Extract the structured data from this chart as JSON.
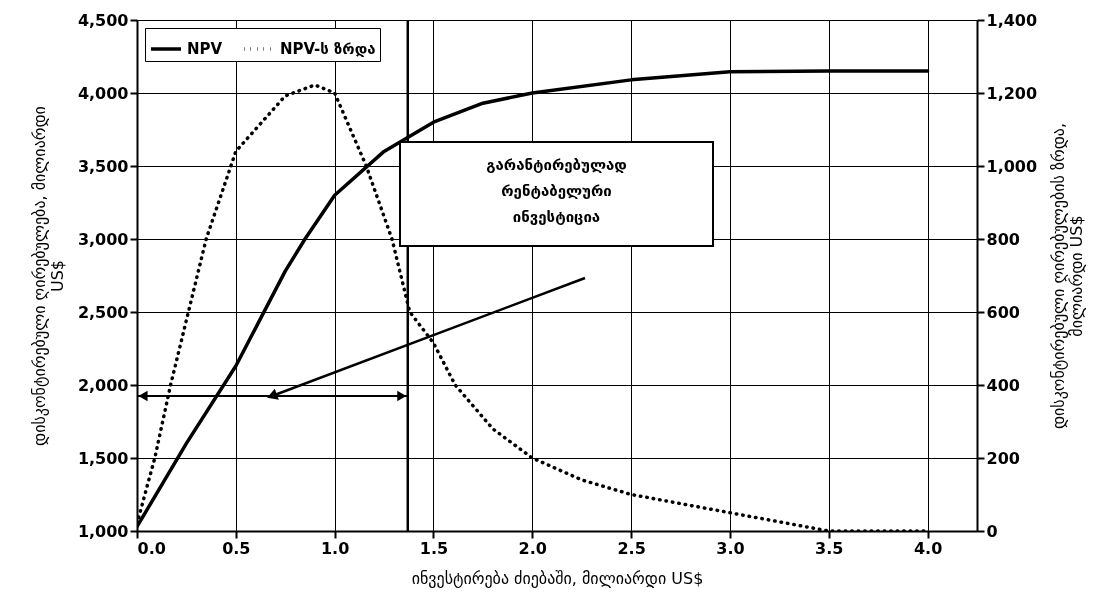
{
  "chart_data": {
    "type": "line",
    "xlabel": "ინვესტირება ძიებაში, მილიარდი US$",
    "ylabel": "დისკონტირებული ღირებულება, მილიარდი US$",
    "y2label": "დისკონტირებული ღირებულების ზრდა, მილიარდი US$",
    "xlim": [
      0,
      4.25
    ],
    "xticks": [
      {
        "value": 0,
        "label": "0.0"
      },
      0.5,
      {
        "value": 1,
        "label": "1.0"
      },
      1.5,
      {
        "value": 2,
        "label": "2.0"
      },
      2.5,
      {
        "value": 3,
        "label": "3.0"
      },
      3.5,
      {
        "value": 4,
        "label": "4.0"
      }
    ],
    "ylim": [
      1000,
      4500
    ],
    "yticks": [
      {
        "value": 1000,
        "label": "1,000"
      },
      {
        "value": 1500,
        "label": "1,500"
      },
      {
        "value": 2000,
        "label": "2,000"
      },
      {
        "value": 2500,
        "label": "2,500"
      },
      {
        "value": 3000,
        "label": "3,000"
      },
      {
        "value": 3500,
        "label": "3,500"
      },
      {
        "value": 4000,
        "label": "4,000"
      },
      {
        "value": 4500,
        "label": "4,500"
      }
    ],
    "y2lim": [
      0,
      1400
    ],
    "y2ticks": [
      0,
      200,
      400,
      600,
      800,
      {
        "value": 1000,
        "label": "1,000"
      },
      {
        "value": 1200,
        "label": "1,200"
      },
      {
        "value": 1400,
        "label": "1,400"
      }
    ],
    "grid": true,
    "legend": "top left",
    "series": [
      {
        "name": "NPV",
        "color": "#000000",
        "line_style": "solid",
        "x": [
          0,
          0.25,
          0.5,
          0.75,
          0.85,
          1,
          1.25,
          1.5,
          1.75,
          2,
          2.5,
          3,
          3.5,
          4
        ],
        "values": [
          1030,
          1600,
          2130,
          2780,
          3000,
          3300,
          3600,
          3800,
          3930,
          4000,
          4090,
          4145,
          4150,
          4150
        ]
      },
      {
        "name": "NPV-ს ზრდა",
        "color": "#000000",
        "line_style": "dotted",
        "axis": "y2",
        "x": [
          0,
          0.09,
          0.17,
          0.26,
          0.35,
          0.5,
          0.75,
          0.9,
          1,
          1.16,
          1.29,
          1.38,
          1.5,
          1.61,
          1.8,
          2,
          2.25,
          2.5,
          2.75,
          3,
          3.25,
          3.5,
          4
        ],
        "values": [
          20,
          200,
          400,
          600,
          800,
          1040,
          1192,
          1222,
          1200,
          1000,
          800,
          600,
          515,
          400,
          280,
          200,
          140,
          100,
          75,
          50,
          25,
          0,
          0
        ]
      }
    ],
    "ref_lines": [
      {
        "axis": "x",
        "value": 1.37
      }
    ],
    "annotations": [
      "გარანტირებულად რენტაბელური ინვესტიცია"
    ]
  }
}
